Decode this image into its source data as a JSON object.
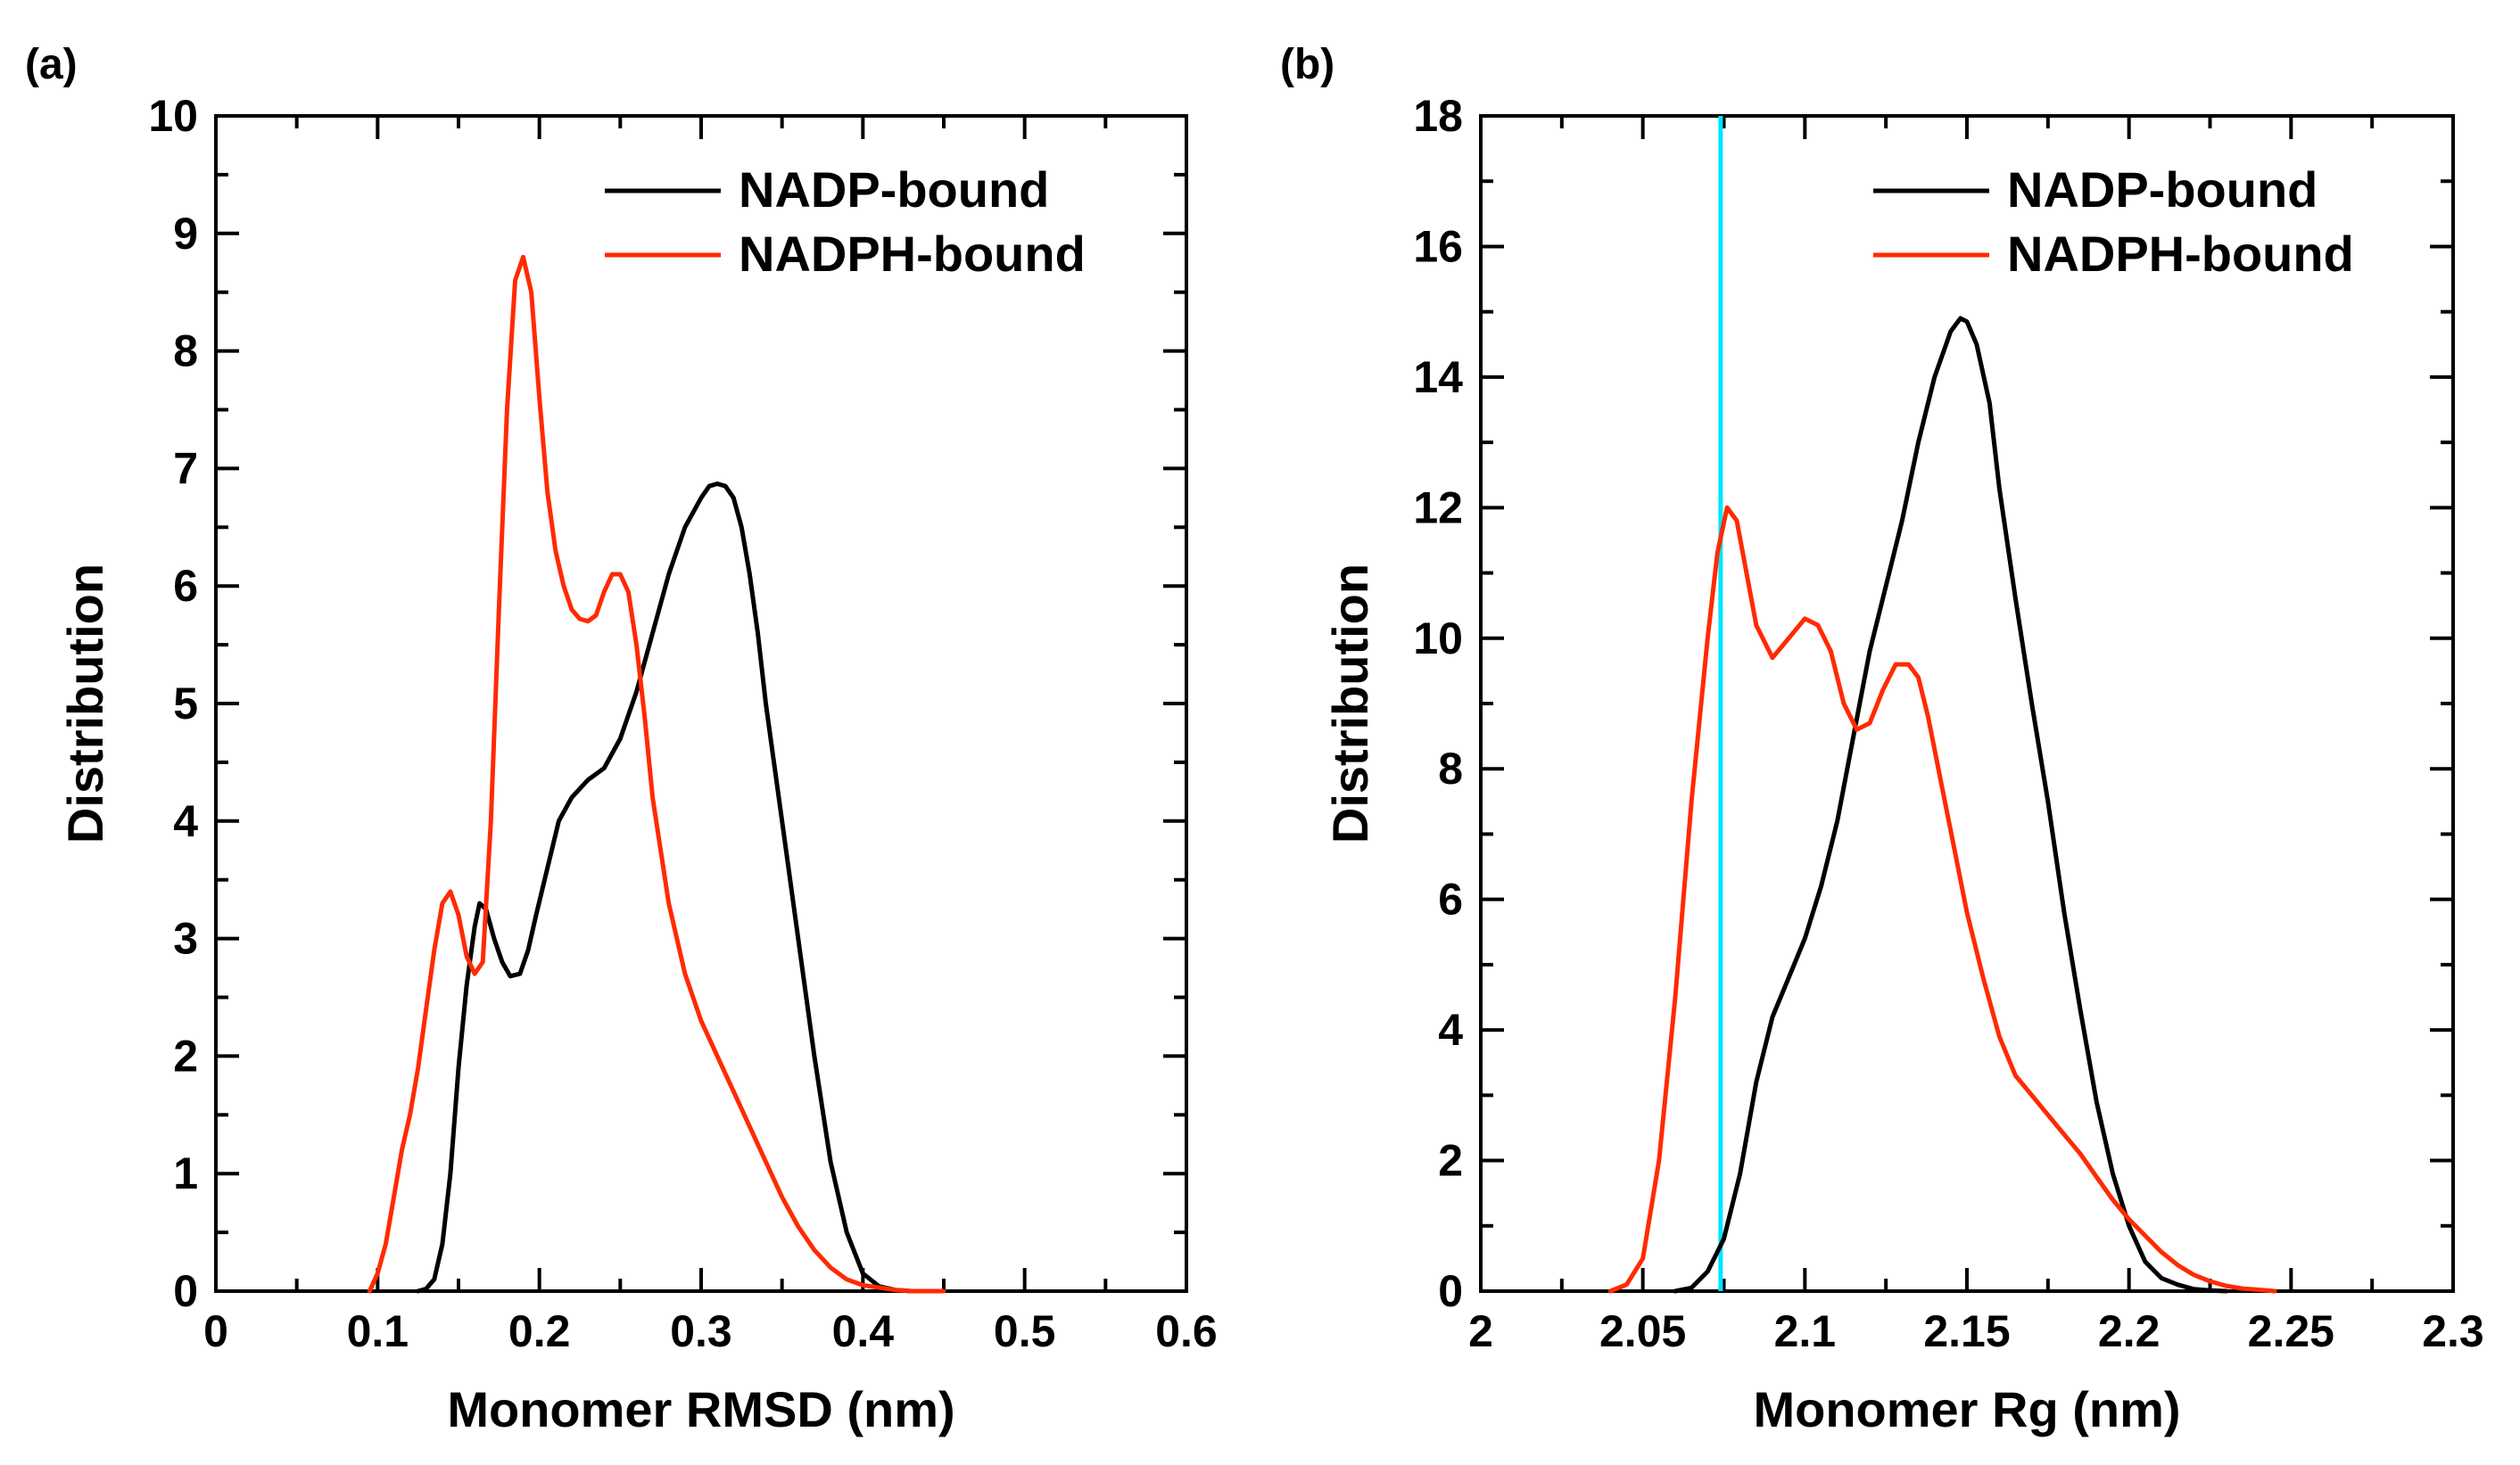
{
  "colors": {
    "nadp": "#000000",
    "nadph": "#ff2a00",
    "vline": "#00e5ff"
  },
  "chart_data": [
    {
      "panel": "(a)",
      "type": "line",
      "xlabel": "Monomer RMSD (nm)",
      "ylabel": "Distribution",
      "xlim": [
        0,
        0.6
      ],
      "ylim": [
        0,
        10
      ],
      "xticks": [
        "0",
        "0.1",
        "0.2",
        "0.3",
        "0.4",
        "0.5",
        "0.6"
      ],
      "xtick_values": [
        0,
        0.1,
        0.2,
        0.3,
        0.4,
        0.5,
        0.6
      ],
      "yticks": [
        "0",
        "1",
        "2",
        "3",
        "4",
        "5",
        "6",
        "7",
        "8",
        "9",
        "10"
      ],
      "ytick_values": [
        0,
        1,
        2,
        3,
        4,
        5,
        6,
        7,
        8,
        9,
        10
      ],
      "legend_position": "top-right",
      "series": [
        {
          "name": "NADP-bound",
          "color_key": "nadp",
          "x": [
            0.125,
            0.13,
            0.135,
            0.14,
            0.145,
            0.15,
            0.155,
            0.16,
            0.163,
            0.167,
            0.172,
            0.177,
            0.182,
            0.188,
            0.193,
            0.198,
            0.205,
            0.212,
            0.22,
            0.23,
            0.24,
            0.25,
            0.26,
            0.27,
            0.28,
            0.29,
            0.3,
            0.305,
            0.31,
            0.315,
            0.32,
            0.325,
            0.33,
            0.335,
            0.34,
            0.35,
            0.36,
            0.37,
            0.38,
            0.39,
            0.4,
            0.41,
            0.42,
            0.43,
            0.44
          ],
          "y": [
            0,
            0.02,
            0.1,
            0.4,
            1.0,
            1.9,
            2.6,
            3.1,
            3.3,
            3.25,
            3.0,
            2.8,
            2.68,
            2.7,
            2.9,
            3.2,
            3.6,
            4.0,
            4.2,
            4.35,
            4.45,
            4.7,
            5.1,
            5.6,
            6.1,
            6.5,
            6.75,
            6.85,
            6.87,
            6.85,
            6.75,
            6.5,
            6.1,
            5.6,
            5.0,
            4.0,
            3.0,
            2.0,
            1.1,
            0.5,
            0.15,
            0.04,
            0.01,
            0.0,
            0.0
          ]
        },
        {
          "name": "NADPH-bound",
          "color_key": "nadph",
          "x": [
            0.095,
            0.1,
            0.105,
            0.11,
            0.115,
            0.12,
            0.125,
            0.13,
            0.135,
            0.14,
            0.145,
            0.15,
            0.155,
            0.16,
            0.165,
            0.17,
            0.175,
            0.18,
            0.185,
            0.19,
            0.195,
            0.2,
            0.205,
            0.21,
            0.215,
            0.22,
            0.225,
            0.23,
            0.235,
            0.24,
            0.245,
            0.25,
            0.255,
            0.26,
            0.265,
            0.27,
            0.28,
            0.29,
            0.3,
            0.31,
            0.32,
            0.33,
            0.34,
            0.35,
            0.36,
            0.37,
            0.38,
            0.39,
            0.4,
            0.41,
            0.42,
            0.43,
            0.44,
            0.45
          ],
          "y": [
            0,
            0.15,
            0.4,
            0.8,
            1.2,
            1.5,
            1.9,
            2.4,
            2.9,
            3.3,
            3.4,
            3.2,
            2.85,
            2.7,
            2.8,
            4.0,
            5.8,
            7.5,
            8.6,
            8.8,
            8.5,
            7.6,
            6.8,
            6.3,
            6.0,
            5.8,
            5.72,
            5.7,
            5.75,
            5.95,
            6.1,
            6.1,
            5.95,
            5.5,
            4.9,
            4.2,
            3.3,
            2.7,
            2.3,
            2.0,
            1.7,
            1.4,
            1.1,
            0.8,
            0.55,
            0.35,
            0.2,
            0.1,
            0.05,
            0.03,
            0.01,
            0.0,
            0.0,
            0.0
          ]
        }
      ]
    },
    {
      "panel": "(b)",
      "type": "line",
      "xlabel": "Monomer Rg (nm)",
      "ylabel": "Distribution",
      "xlim": [
        2,
        2.3
      ],
      "ylim": [
        0,
        18
      ],
      "xticks": [
        "2",
        "2.05",
        "2.1",
        "2.15",
        "2.2",
        "2.25",
        "2.3"
      ],
      "xtick_values": [
        2,
        2.05,
        2.1,
        2.15,
        2.2,
        2.25,
        2.3
      ],
      "yticks": [
        "0",
        "2",
        "4",
        "6",
        "8",
        "10",
        "12",
        "14",
        "16",
        "18"
      ],
      "ytick_values": [
        0,
        2,
        4,
        6,
        8,
        10,
        12,
        14,
        16,
        18
      ],
      "vline_x": 2.074,
      "legend_position": "top-right",
      "series": [
        {
          "name": "NADP-bound",
          "color_key": "nadp",
          "x": [
            2.06,
            2.065,
            2.07,
            2.075,
            2.08,
            2.085,
            2.09,
            2.095,
            2.1,
            2.105,
            2.11,
            2.115,
            2.12,
            2.125,
            2.13,
            2.135,
            2.14,
            2.145,
            2.148,
            2.15,
            2.153,
            2.157,
            2.16,
            2.165,
            2.17,
            2.175,
            2.18,
            2.185,
            2.19,
            2.195,
            2.2,
            2.205,
            2.21,
            2.215,
            2.22,
            2.225,
            2.23
          ],
          "y": [
            0.0,
            0.05,
            0.3,
            0.8,
            1.8,
            3.2,
            4.2,
            4.8,
            5.4,
            6.2,
            7.2,
            8.5,
            9.8,
            10.8,
            11.8,
            13.0,
            14.0,
            14.7,
            14.9,
            14.85,
            14.5,
            13.6,
            12.3,
            10.6,
            9.0,
            7.5,
            5.8,
            4.3,
            2.9,
            1.8,
            1.0,
            0.45,
            0.2,
            0.1,
            0.03,
            0.01,
            0.0
          ]
        },
        {
          "name": "NADPH-bound",
          "color_key": "nadph",
          "x": [
            2.04,
            2.045,
            2.05,
            2.055,
            2.06,
            2.065,
            2.07,
            2.073,
            2.076,
            2.079,
            2.082,
            2.085,
            2.09,
            2.095,
            2.1,
            2.104,
            2.108,
            2.112,
            2.116,
            2.12,
            2.124,
            2.128,
            2.132,
            2.135,
            2.138,
            2.142,
            2.146,
            2.15,
            2.155,
            2.16,
            2.165,
            2.17,
            2.175,
            2.18,
            2.185,
            2.19,
            2.195,
            2.2,
            2.205,
            2.21,
            2.215,
            2.22,
            2.225,
            2.23,
            2.235,
            2.24,
            2.245
          ],
          "y": [
            0.0,
            0.1,
            0.5,
            2.0,
            4.5,
            7.5,
            10.0,
            11.3,
            12.0,
            11.8,
            11.0,
            10.2,
            9.7,
            10.0,
            10.3,
            10.2,
            9.8,
            9.0,
            8.6,
            8.7,
            9.2,
            9.6,
            9.6,
            9.4,
            8.8,
            7.8,
            6.8,
            5.8,
            4.8,
            3.9,
            3.3,
            3.0,
            2.7,
            2.4,
            2.1,
            1.75,
            1.4,
            1.1,
            0.85,
            0.6,
            0.4,
            0.25,
            0.15,
            0.08,
            0.04,
            0.02,
            0.0
          ]
        }
      ]
    }
  ]
}
